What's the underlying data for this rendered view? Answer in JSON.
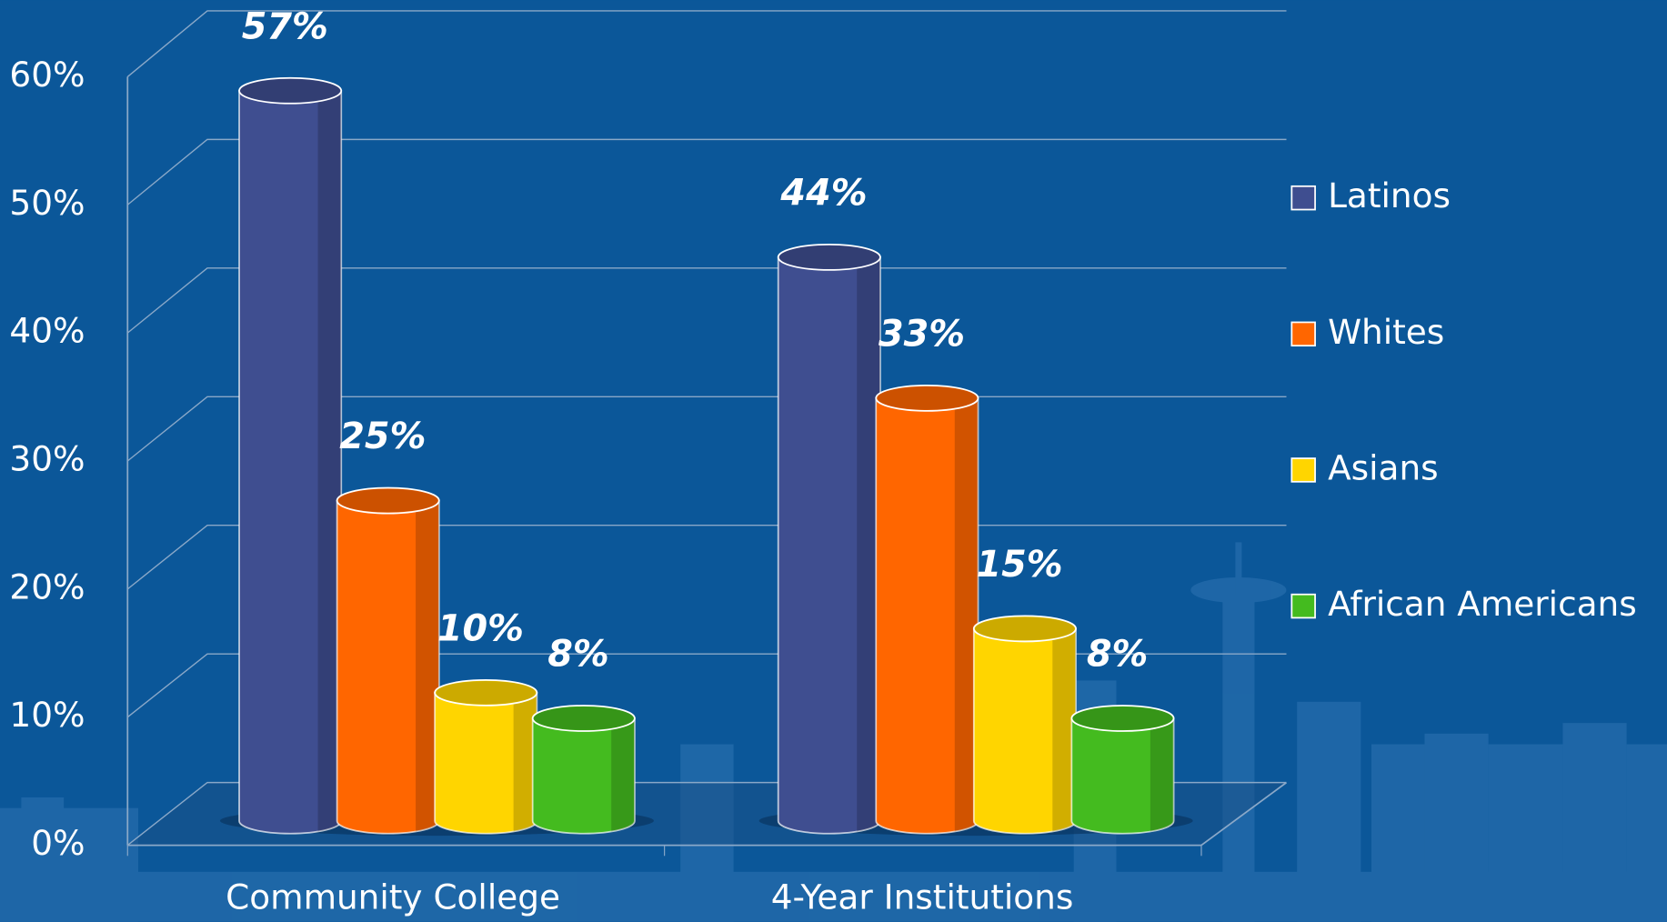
{
  "chart_data": {
    "type": "bar3d",
    "categories": [
      "Community College",
      "4-Year Institutions"
    ],
    "series": [
      {
        "name": "Latinos",
        "color": "#3f4e90",
        "values": [
          57,
          44
        ],
        "value_labels": [
          "57%",
          "44%"
        ]
      },
      {
        "name": "Whites",
        "color": "#ff6600",
        "values": [
          25,
          33
        ],
        "value_labels": [
          "25%",
          "33%"
        ]
      },
      {
        "name": "Asians",
        "color": "#ffd500",
        "values": [
          10,
          15
        ],
        "value_labels": [
          "10%",
          "15%"
        ]
      },
      {
        "name": "African Americans",
        "color": "#44bb1f",
        "values": [
          8,
          8
        ],
        "value_labels": [
          "8%",
          "8%"
        ]
      }
    ],
    "ylim": [
      0,
      60
    ],
    "yticks": [
      {
        "value": 0,
        "label": "0%"
      },
      {
        "value": 10,
        "label": "10%"
      },
      {
        "value": 20,
        "label": "20%"
      },
      {
        "value": 30,
        "label": "30%"
      },
      {
        "value": 40,
        "label": "40%"
      },
      {
        "value": 50,
        "label": "50%"
      },
      {
        "value": 60,
        "label": "60%"
      }
    ],
    "grid": true,
    "legend": "right"
  }
}
